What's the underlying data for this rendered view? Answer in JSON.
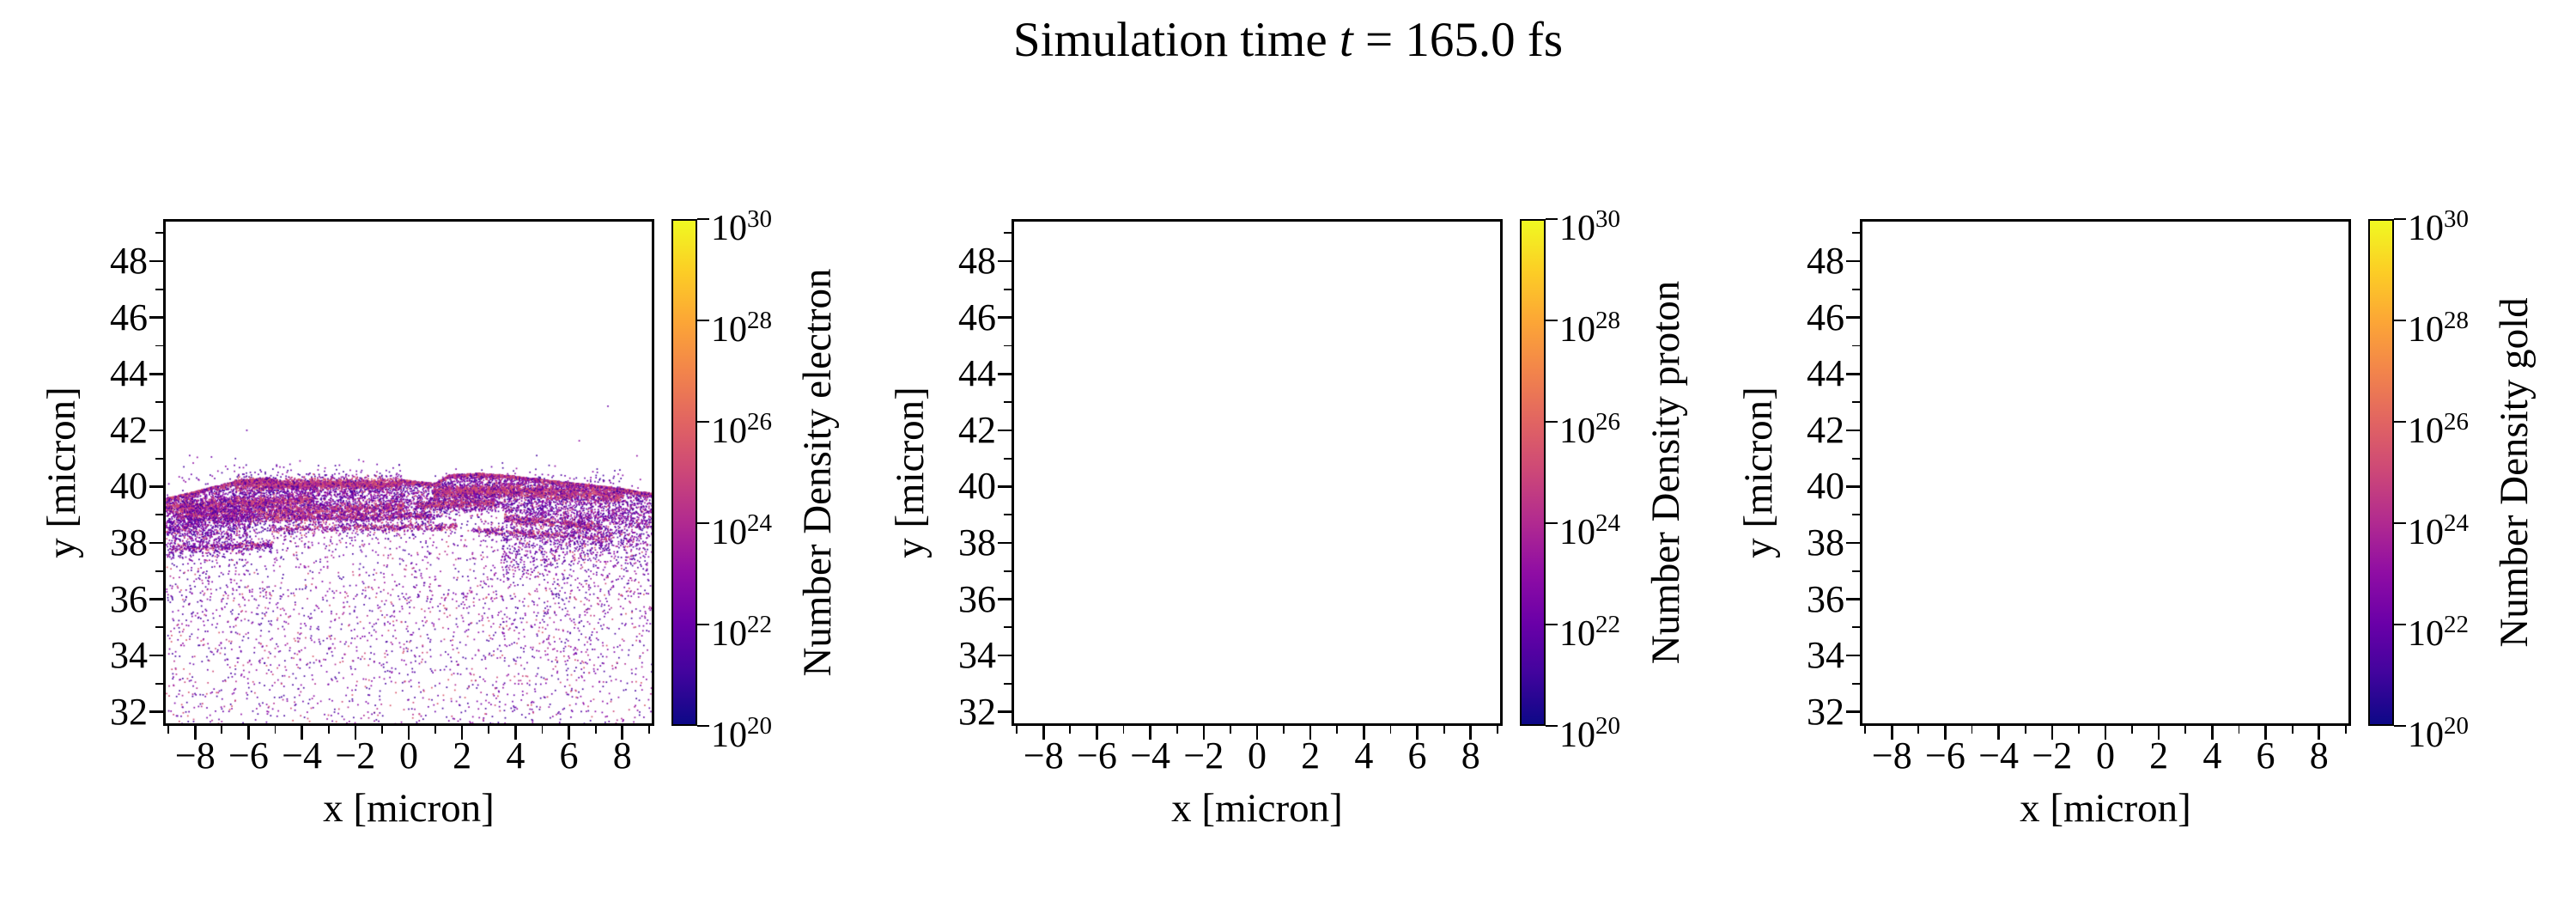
{
  "figure": {
    "title_prefix": "Simulation time ",
    "title_var": "t",
    "title_suffix": " = 165.0 fs",
    "background": "#ffffff"
  },
  "colormap": {
    "name": "plasma",
    "stops": [
      "#0d0887",
      "#41049d",
      "#6a00a8",
      "#8f0da4",
      "#b12a90",
      "#cc4778",
      "#e16462",
      "#f2844b",
      "#fca636",
      "#fcce25",
      "#f0f921"
    ]
  },
  "chart_data": [
    {
      "type": "scatter",
      "species": "electron",
      "xlabel": "x [micron]",
      "ylabel": "y [micron]",
      "xlim": [
        -9.2,
        9.2
      ],
      "ylim": [
        31.5,
        49.5
      ],
      "xticks": [
        -8,
        -6,
        -4,
        -2,
        0,
        2,
        4,
        6,
        8
      ],
      "yticks": [
        48,
        46,
        44,
        42,
        40,
        38,
        36,
        34,
        32
      ],
      "colorbar_label": "Number Density electron",
      "colorbar_scale": "log",
      "colorbar_tick_base": "10",
      "colorbar_tick_exponents": [
        30,
        28,
        26,
        24,
        22,
        20
      ],
      "has_data": true,
      "scatter_model": {
        "seed": 1650042,
        "point_size": 1.7,
        "surface_points": [
          [
            -9.2,
            39.6
          ],
          [
            -8.4,
            39.78
          ],
          [
            -7.4,
            40.02
          ],
          [
            -6.4,
            40.26
          ],
          [
            -5.3,
            40.33
          ],
          [
            -4.75,
            40.12
          ],
          [
            -3.6,
            40.15
          ],
          [
            -2.3,
            40.17
          ],
          [
            -1.1,
            40.08
          ],
          [
            -0.25,
            40.26
          ],
          [
            0.5,
            40.18
          ],
          [
            1.0,
            40.14
          ],
          [
            1.5,
            40.44
          ],
          [
            2.6,
            40.5
          ],
          [
            3.8,
            40.42
          ],
          [
            5.0,
            40.28
          ],
          [
            6.2,
            40.15
          ],
          [
            7.4,
            40.03
          ],
          [
            8.2,
            39.92
          ],
          [
            9.2,
            39.78
          ]
        ],
        "haze": {
          "n": 7000,
          "near_scale": 1.3,
          "near_frac": 0.55,
          "tail_scale": 2.6
        },
        "floor_speckle": {
          "n": 1300,
          "y_min": 31.5,
          "y_max": 36.5
        },
        "surface_crest": {
          "n": 2600,
          "depth": 0.07,
          "pinkness": 0.65
        },
        "bands": [
          [
            -6.6,
            -0.3,
            40.1,
            40.13,
            0.1,
            1800,
            0.85
          ],
          [
            0.9,
            4.0,
            39.8,
            39.88,
            0.12,
            1100,
            0.8
          ],
          [
            4.0,
            8.1,
            39.88,
            39.7,
            0.12,
            1100,
            0.8
          ],
          [
            -9.2,
            -3.6,
            39.28,
            39.56,
            0.09,
            1100,
            0.75
          ],
          [
            -8.8,
            -0.2,
            39.02,
            39.3,
            0.12,
            1500,
            0.7
          ],
          [
            0.3,
            3.2,
            39.36,
            39.44,
            0.07,
            500,
            0.7
          ],
          [
            -7.0,
            0.8,
            38.86,
            38.97,
            0.08,
            850,
            0.62
          ],
          [
            3.6,
            7.3,
            38.88,
            38.56,
            0.09,
            650,
            0.65
          ],
          [
            -5.3,
            1.8,
            38.5,
            38.58,
            0.06,
            550,
            0.6
          ],
          [
            2.4,
            7.6,
            38.44,
            38.18,
            0.06,
            420,
            0.55
          ],
          [
            -9.0,
            -5.2,
            37.76,
            37.94,
            0.07,
            380,
            0.4
          ],
          [
            -9.2,
            -6.0,
            38.3,
            38.9,
            0.45,
            900,
            0.15
          ],
          [
            3.5,
            9.2,
            37.6,
            38.3,
            0.5,
            800,
            0.12
          ]
        ],
        "palette_pink": [
          "#d8576b",
          "#cc4778",
          "#b12a90"
        ],
        "palette_purple": [
          "#8f0da4",
          "#6a00a8",
          "#46039f"
        ],
        "palette_haze": [
          "#7e03a8",
          "#46039f",
          "#9c179e",
          "#b12a90",
          "#cc4778"
        ],
        "palette_haze_weights": [
          0.35,
          0.3,
          0.15,
          0.12,
          0.08
        ]
      }
    },
    {
      "type": "scatter",
      "species": "proton",
      "xlabel": "x [micron]",
      "ylabel": "y [micron]",
      "xlim": [
        -9.2,
        9.2
      ],
      "ylim": [
        31.5,
        49.5
      ],
      "xticks": [
        -8,
        -6,
        -4,
        -2,
        0,
        2,
        4,
        6,
        8
      ],
      "yticks": [
        48,
        46,
        44,
        42,
        40,
        38,
        36,
        34,
        32
      ],
      "colorbar_label": "Number Density proton",
      "colorbar_scale": "log",
      "colorbar_tick_base": "10",
      "colorbar_tick_exponents": [
        30,
        28,
        26,
        24,
        22,
        20
      ],
      "has_data": false
    },
    {
      "type": "scatter",
      "species": "gold",
      "xlabel": "x [micron]",
      "ylabel": "y [micron]",
      "xlim": [
        -9.2,
        9.2
      ],
      "ylim": [
        31.5,
        49.5
      ],
      "xticks": [
        -8,
        -6,
        -4,
        -2,
        0,
        2,
        4,
        6,
        8
      ],
      "yticks": [
        48,
        46,
        44,
        42,
        40,
        38,
        36,
        34,
        32
      ],
      "colorbar_label": "Number Density gold",
      "colorbar_scale": "log",
      "colorbar_tick_base": "10",
      "colorbar_tick_exponents": [
        30,
        28,
        26,
        24,
        22,
        20
      ],
      "has_data": false
    }
  ]
}
